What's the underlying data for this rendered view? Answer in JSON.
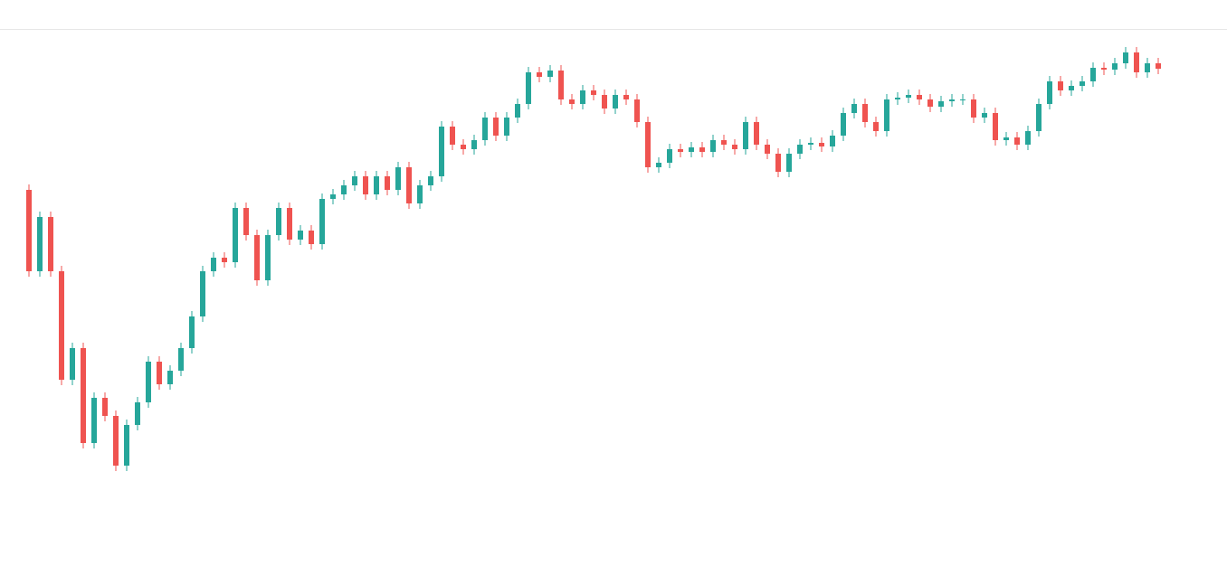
{
  "chart_data": {
    "type": "candlestick",
    "up_color": "#26a69a",
    "down_color": "#ef5350",
    "ylim": [
      0,
      626
    ],
    "open": [
      416,
      326,
      386,
      326,
      206,
      241,
      136,
      186,
      166,
      111,
      156,
      181,
      226,
      201,
      216,
      241,
      276,
      326,
      341,
      336,
      396,
      366,
      316,
      366,
      396,
      361,
      371,
      356,
      406,
      411,
      421,
      431,
      411,
      431,
      416,
      441,
      401,
      421,
      431,
      486,
      466,
      461,
      471,
      496,
      476,
      496,
      511,
      546,
      541,
      548,
      516,
      511,
      526,
      521,
      506,
      521,
      516,
      491,
      441,
      446,
      461,
      458,
      463,
      458,
      471,
      466,
      461,
      491,
      466,
      456,
      436,
      456,
      466,
      468,
      464,
      476,
      501,
      511,
      491,
      481,
      516,
      518,
      521,
      516,
      508,
      514,
      516,
      516,
      496,
      501,
      471,
      474,
      466,
      481,
      511,
      536,
      526,
      531,
      536,
      551,
      549,
      556,
      568,
      546,
      556
    ],
    "high": [
      422,
      392,
      392,
      332,
      247,
      247,
      192,
      192,
      172,
      162,
      187,
      232,
      232,
      222,
      247,
      282,
      332,
      347,
      347,
      402,
      402,
      372,
      372,
      402,
      402,
      377,
      377,
      412,
      417,
      427,
      437,
      437,
      437,
      437,
      447,
      447,
      427,
      437,
      492,
      492,
      472,
      477,
      502,
      502,
      502,
      517,
      552,
      552,
      554,
      554,
      522,
      532,
      532,
      527,
      527,
      527,
      522,
      497,
      452,
      467,
      467,
      469,
      469,
      477,
      477,
      472,
      497,
      497,
      472,
      462,
      462,
      472,
      474,
      474,
      482,
      507,
      517,
      517,
      497,
      522,
      524,
      527,
      527,
      522,
      520,
      522,
      522,
      522,
      507,
      507,
      480,
      480,
      487,
      517,
      542,
      542,
      537,
      542,
      557,
      557,
      562,
      574,
      574,
      562,
      562
    ],
    "low": [
      320,
      320,
      320,
      200,
      200,
      130,
      130,
      160,
      105,
      105,
      150,
      175,
      195,
      195,
      210,
      235,
      270,
      320,
      330,
      330,
      360,
      310,
      310,
      360,
      355,
      355,
      350,
      350,
      400,
      405,
      415,
      405,
      405,
      410,
      410,
      395,
      395,
      415,
      425,
      460,
      455,
      455,
      465,
      470,
      470,
      490,
      505,
      535,
      535,
      510,
      505,
      505,
      515,
      500,
      500,
      510,
      485,
      435,
      435,
      440,
      452,
      452,
      452,
      452,
      460,
      455,
      455,
      460,
      450,
      430,
      430,
      450,
      460,
      458,
      458,
      470,
      495,
      485,
      475,
      475,
      510,
      512,
      510,
      502,
      502,
      508,
      510,
      490,
      490,
      465,
      465,
      460,
      460,
      475,
      505,
      520,
      520,
      525,
      530,
      543,
      543,
      550,
      540,
      540,
      544
    ],
    "close": [
      326,
      386,
      326,
      206,
      241,
      136,
      186,
      166,
      111,
      156,
      181,
      226,
      201,
      216,
      241,
      276,
      326,
      341,
      336,
      396,
      366,
      316,
      366,
      396,
      361,
      371,
      356,
      406,
      411,
      421,
      431,
      411,
      431,
      416,
      441,
      401,
      421,
      431,
      486,
      466,
      461,
      471,
      496,
      476,
      496,
      511,
      546,
      541,
      548,
      516,
      511,
      526,
      521,
      506,
      521,
      516,
      491,
      441,
      446,
      461,
      458,
      463,
      458,
      471,
      466,
      461,
      491,
      466,
      456,
      436,
      456,
      466,
      468,
      464,
      476,
      501,
      511,
      491,
      481,
      516,
      518,
      521,
      516,
      508,
      514,
      516,
      516,
      496,
      501,
      471,
      474,
      466,
      481,
      511,
      536,
      526,
      531,
      536,
      551,
      549,
      556,
      568,
      546,
      556,
      550
    ]
  }
}
